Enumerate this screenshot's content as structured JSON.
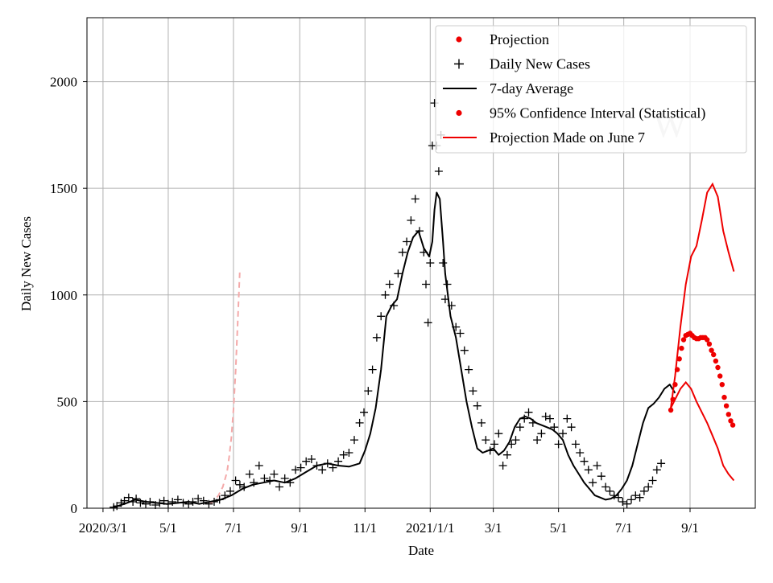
{
  "chart_data": {
    "type": "line",
    "title": "",
    "xlabel": "Date",
    "ylabel": "Daily New Cases",
    "x_unit": "days since 2020-03-01",
    "xlim": [
      -15,
      610
    ],
    "ylim": [
      0,
      2300
    ],
    "grid": true,
    "legend_position": "top-right",
    "x_ticks": [
      {
        "value": 0,
        "label": "2020/3/1"
      },
      {
        "value": 61,
        "label": "5/1"
      },
      {
        "value": 122,
        "label": "7/1"
      },
      {
        "value": 184,
        "label": "9/1"
      },
      {
        "value": 245,
        "label": "11/1"
      },
      {
        "value": 306,
        "label": "2021/1/1"
      },
      {
        "value": 365,
        "label": "3/1"
      },
      {
        "value": 426,
        "label": "5/1"
      },
      {
        "value": 487,
        "label": "7/1"
      },
      {
        "value": 549,
        "label": "9/1"
      }
    ],
    "y_ticks": [
      {
        "value": 0,
        "label": "0"
      },
      {
        "value": 500,
        "label": "500"
      },
      {
        "value": 1000,
        "label": "1000"
      },
      {
        "value": 1500,
        "label": "1500"
      },
      {
        "value": 2000,
        "label": "2000"
      }
    ],
    "legend": [
      {
        "label": "Projection",
        "style": "red-dot"
      },
      {
        "label": "Daily New Cases",
        "style": "black-plus"
      },
      {
        "label": "7-day Average",
        "style": "black-line"
      },
      {
        "label": "95% Confidence Interval (Statistical)",
        "style": "red-dot"
      },
      {
        "label": "Projection Made on June 7",
        "style": "red-line"
      }
    ],
    "watermark": "W",
    "colors": {
      "projection": "#ee0000",
      "cases": "#000000",
      "early_projection": "#f4a9a9"
    },
    "series": [
      {
        "name": "7-day Average",
        "x": [
          10,
          20,
          30,
          40,
          50,
          60,
          70,
          80,
          90,
          100,
          110,
          120,
          130,
          140,
          150,
          160,
          170,
          180,
          190,
          200,
          210,
          220,
          230,
          240,
          245,
          250,
          255,
          260,
          265,
          270,
          275,
          280,
          285,
          290,
          295,
          300,
          305,
          308,
          310,
          312,
          315,
          318,
          320,
          325,
          330,
          335,
          340,
          345,
          350,
          355,
          360,
          365,
          370,
          375,
          380,
          385,
          390,
          395,
          400,
          405,
          410,
          415,
          420,
          425,
          430,
          435,
          440,
          445,
          450,
          455,
          460,
          465,
          470,
          475,
          480,
          485,
          490,
          495,
          500,
          505,
          510,
          515,
          520,
          525,
          530,
          535
        ],
        "values": [
          5,
          20,
          40,
          30,
          25,
          20,
          25,
          30,
          20,
          30,
          40,
          60,
          90,
          110,
          120,
          130,
          120,
          140,
          170,
          200,
          210,
          200,
          195,
          210,
          270,
          350,
          470,
          650,
          900,
          950,
          980,
          1100,
          1200,
          1270,
          1300,
          1220,
          1180,
          1250,
          1400,
          1480,
          1450,
          1250,
          1100,
          900,
          800,
          650,
          500,
          380,
          280,
          260,
          270,
          280,
          250,
          270,
          310,
          380,
          420,
          430,
          420,
          400,
          390,
          380,
          370,
          350,
          320,
          250,
          200,
          160,
          120,
          90,
          60,
          50,
          40,
          45,
          60,
          90,
          130,
          200,
          300,
          400,
          470,
          490,
          520,
          560,
          580,
          540
        ]
      },
      {
        "name": "Daily New Cases",
        "x": [
          10,
          13,
          17,
          20,
          24,
          28,
          31,
          35,
          40,
          44,
          49,
          53,
          57,
          61,
          65,
          70,
          75,
          80,
          84,
          89,
          94,
          99,
          104,
          109,
          114,
          119,
          124,
          128,
          132,
          137,
          141,
          146,
          151,
          156,
          160,
          165,
          170,
          175,
          180,
          185,
          190,
          195,
          200,
          205,
          210,
          215,
          220,
          225,
          230,
          235,
          240,
          244,
          248,
          252,
          256,
          260,
          264,
          268,
          272,
          276,
          280,
          284,
          288,
          292,
          296,
          300,
          302,
          304,
          306,
          308,
          310,
          312,
          314,
          316,
          318,
          320,
          322,
          326,
          330,
          334,
          338,
          342,
          346,
          350,
          354,
          358,
          362,
          366,
          370,
          374,
          378,
          382,
          386,
          390,
          394,
          398,
          402,
          406,
          410,
          414,
          418,
          422,
          426,
          430,
          434,
          438,
          442,
          446,
          450,
          454,
          458,
          462,
          466,
          470,
          474,
          478,
          482,
          486,
          490,
          494,
          498,
          502,
          506,
          510,
          514,
          518,
          522
        ],
        "values": [
          5,
          10,
          25,
          35,
          50,
          30,
          45,
          25,
          20,
          30,
          15,
          25,
          35,
          20,
          30,
          40,
          25,
          20,
          30,
          45,
          35,
          20,
          30,
          40,
          60,
          80,
          130,
          110,
          100,
          160,
          120,
          200,
          140,
          130,
          160,
          100,
          140,
          120,
          180,
          190,
          220,
          230,
          200,
          180,
          210,
          190,
          220,
          250,
          260,
          320,
          400,
          450,
          550,
          650,
          800,
          900,
          1000,
          1050,
          950,
          1100,
          1200,
          1250,
          1350,
          1450,
          1300,
          1200,
          1050,
          870,
          1150,
          1700,
          1900,
          1700,
          1580,
          1750,
          1150,
          980,
          1050,
          950,
          850,
          820,
          740,
          650,
          550,
          480,
          400,
          320,
          270,
          300,
          350,
          200,
          250,
          300,
          320,
          380,
          420,
          450,
          400,
          320,
          350,
          430,
          420,
          380,
          300,
          350,
          420,
          380,
          300,
          260,
          220,
          180,
          120,
          200,
          150,
          100,
          80,
          60,
          50,
          30,
          20,
          40,
          60,
          50,
          80,
          100,
          130,
          180,
          210
        ]
      },
      {
        "name": "Projection Made on June 7 (upper)",
        "x": [
          531,
          535,
          540,
          545,
          550,
          555,
          560,
          565,
          570,
          575,
          580,
          585,
          590
        ],
        "values": [
          470,
          620,
          850,
          1050,
          1180,
          1230,
          1350,
          1480,
          1520,
          1460,
          1300,
          1200,
          1110
        ]
      },
      {
        "name": "Projection Made on June 7 (lower)",
        "x": [
          531,
          535,
          540,
          545,
          550,
          555,
          560,
          565,
          570,
          575,
          580,
          585,
          590
        ],
        "values": [
          470,
          510,
          560,
          590,
          560,
          500,
          450,
          400,
          340,
          280,
          200,
          160,
          130
        ]
      },
      {
        "name": "Projection (points)",
        "x": [
          531,
          533,
          535,
          537,
          539,
          541,
          543,
          545,
          547,
          549,
          551,
          553,
          555,
          557,
          559,
          561,
          563,
          565,
          567,
          569,
          571,
          573,
          575,
          577,
          579,
          581,
          583,
          585,
          587,
          589
        ],
        "values": [
          460,
          510,
          580,
          650,
          700,
          750,
          790,
          810,
          815,
          820,
          810,
          800,
          795,
          795,
          800,
          800,
          800,
          790,
          770,
          740,
          720,
          690,
          660,
          620,
          580,
          520,
          480,
          440,
          410,
          390
        ]
      },
      {
        "name": "Early Projection (dashed)",
        "x": [
          100,
          104,
          108,
          112,
          116,
          118,
          120,
          122,
          124,
          126,
          128
        ],
        "values": [
          20,
          35,
          60,
          100,
          170,
          240,
          330,
          460,
          640,
          870,
          1120
        ]
      }
    ]
  }
}
